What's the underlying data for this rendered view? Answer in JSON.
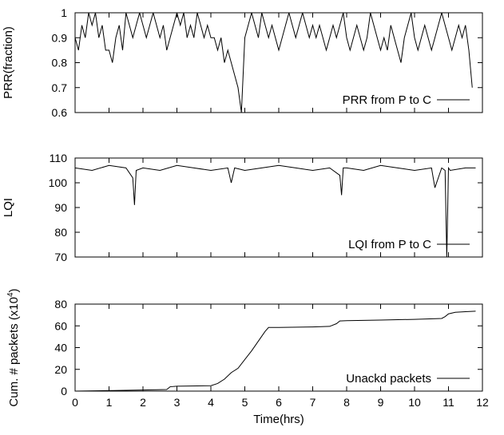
{
  "chart_data": [
    {
      "type": "line",
      "ylabel": "PRR(fraction)",
      "ylim": [
        0.6,
        1.0
      ],
      "yticks": [
        "0.6",
        "0.7",
        "0.8",
        "0.9",
        "1"
      ],
      "xlim": [
        0,
        12
      ],
      "grid": false,
      "legend_position": "bottom-right",
      "series": [
        {
          "name": "PRR from P to C",
          "x": [
            0,
            0.1,
            0.2,
            0.3,
            0.4,
            0.5,
            0.6,
            0.7,
            0.8,
            0.9,
            1.0,
            1.1,
            1.2,
            1.3,
            1.4,
            1.5,
            1.6,
            1.7,
            1.8,
            1.9,
            2.0,
            2.1,
            2.2,
            2.3,
            2.4,
            2.5,
            2.6,
            2.7,
            2.8,
            2.9,
            3.0,
            3.1,
            3.2,
            3.3,
            3.4,
            3.5,
            3.6,
            3.7,
            3.8,
            3.9,
            4.0,
            4.1,
            4.2,
            4.3,
            4.4,
            4.5,
            4.6,
            4.7,
            4.8,
            4.9,
            5.0,
            5.1,
            5.2,
            5.3,
            5.4,
            5.5,
            5.6,
            5.7,
            5.8,
            5.9,
            6.0,
            6.1,
            6.2,
            6.3,
            6.4,
            6.5,
            6.6,
            6.7,
            6.8,
            6.9,
            7.0,
            7.1,
            7.2,
            7.3,
            7.4,
            7.5,
            7.6,
            7.7,
            7.8,
            7.9,
            8.0,
            8.1,
            8.2,
            8.3,
            8.4,
            8.5,
            8.6,
            8.7,
            8.8,
            8.9,
            9.0,
            9.1,
            9.2,
            9.3,
            9.4,
            9.5,
            9.6,
            9.7,
            9.8,
            9.9,
            10.0,
            10.1,
            10.2,
            10.3,
            10.4,
            10.5,
            10.6,
            10.7,
            10.8,
            10.9,
            11.0,
            11.1,
            11.2,
            11.3,
            11.4,
            11.5,
            11.6,
            11.7
          ],
          "values": [
            0.9,
            0.85,
            0.95,
            0.9,
            1.0,
            0.95,
            1.0,
            0.9,
            0.95,
            0.85,
            0.85,
            0.8,
            0.9,
            0.95,
            0.85,
            1.0,
            0.95,
            0.9,
            0.95,
            1.0,
            0.95,
            0.9,
            0.95,
            1.0,
            0.95,
            0.9,
            0.95,
            0.85,
            0.9,
            0.95,
            1.0,
            0.95,
            1.0,
            0.9,
            0.95,
            0.9,
            1.0,
            0.95,
            0.9,
            0.95,
            0.9,
            0.9,
            0.85,
            0.9,
            0.8,
            0.85,
            0.8,
            0.75,
            0.7,
            0.6,
            0.9,
            0.95,
            1.0,
            0.95,
            0.9,
            1.0,
            0.95,
            0.9,
            0.95,
            0.9,
            0.85,
            0.9,
            0.95,
            1.0,
            0.95,
            0.9,
            0.95,
            1.0,
            0.95,
            0.9,
            0.95,
            0.9,
            0.95,
            0.9,
            0.85,
            0.9,
            0.95,
            0.9,
            0.95,
            1.0,
            0.9,
            0.85,
            0.9,
            0.95,
            0.9,
            0.85,
            0.9,
            1.0,
            0.95,
            0.9,
            0.85,
            0.9,
            0.85,
            0.95,
            0.9,
            0.85,
            0.8,
            0.9,
            0.95,
            1.0,
            0.9,
            0.85,
            0.9,
            0.95,
            0.9,
            0.85,
            0.9,
            0.95,
            1.0,
            0.95,
            0.9,
            0.85,
            0.9,
            0.95,
            0.9,
            0.95,
            0.85,
            0.7
          ]
        }
      ]
    },
    {
      "type": "line",
      "ylabel": "LQI",
      "ylim": [
        70,
        110
      ],
      "yticks": [
        "70",
        "80",
        "90",
        "100",
        "110"
      ],
      "xlim": [
        0,
        12
      ],
      "grid": false,
      "legend_position": "bottom-right",
      "series": [
        {
          "name": "LQI from P to C",
          "x": [
            0,
            0.5,
            1.0,
            1.5,
            1.7,
            1.75,
            1.8,
            2.0,
            2.5,
            3.0,
            3.5,
            4.0,
            4.5,
            4.6,
            4.7,
            5.0,
            5.5,
            6.0,
            6.5,
            7.0,
            7.5,
            7.8,
            7.85,
            7.9,
            8.0,
            8.5,
            9.0,
            9.5,
            10.0,
            10.5,
            10.6,
            10.8,
            10.9,
            10.95,
            11.0,
            11.05,
            11.5,
            11.8
          ],
          "values": [
            106,
            105,
            107,
            106,
            102,
            91,
            105,
            106,
            105,
            107,
            106,
            105,
            106,
            100,
            106,
            105,
            106,
            107,
            106,
            105,
            106,
            103,
            95,
            106,
            106,
            105,
            107,
            106,
            105,
            106,
            98,
            106,
            105,
            70,
            106,
            105,
            106,
            106
          ]
        }
      ]
    },
    {
      "type": "line",
      "xlabel": "Time(hrs)",
      "ylabel": "Cum. # packets (x10",
      "ylabel_superscript": "4",
      "ylabel_suffix": ")",
      "ylim": [
        0,
        80
      ],
      "yticks": [
        "0",
        "20",
        "40",
        "60",
        "80"
      ],
      "xlim": [
        0,
        12
      ],
      "xticks": [
        "0",
        "1",
        "2",
        "3",
        "4",
        "5",
        "6",
        "7",
        "8",
        "9",
        "10",
        "11",
        "12"
      ],
      "grid": false,
      "legend_position": "bottom-right",
      "series": [
        {
          "name": "Unackd packets",
          "x": [
            0,
            1.0,
            2.0,
            2.7,
            2.8,
            3.0,
            4.0,
            4.2,
            4.4,
            4.6,
            4.8,
            5.0,
            5.2,
            5.4,
            5.6,
            5.7,
            6.0,
            7.0,
            7.5,
            7.7,
            7.8,
            8.0,
            9.0,
            10.0,
            10.8,
            10.9,
            11.0,
            11.2,
            11.5,
            11.8
          ],
          "values": [
            0,
            0.5,
            1.0,
            1.5,
            4.0,
            4.5,
            5.0,
            7.0,
            11.0,
            17.0,
            21.0,
            29.0,
            37.0,
            46.0,
            55.0,
            58.5,
            58.5,
            59.0,
            59.5,
            62.0,
            64.5,
            64.8,
            65.3,
            66.0,
            66.8,
            68.5,
            71.0,
            72.5,
            73.0,
            73.5
          ]
        }
      ]
    }
  ]
}
